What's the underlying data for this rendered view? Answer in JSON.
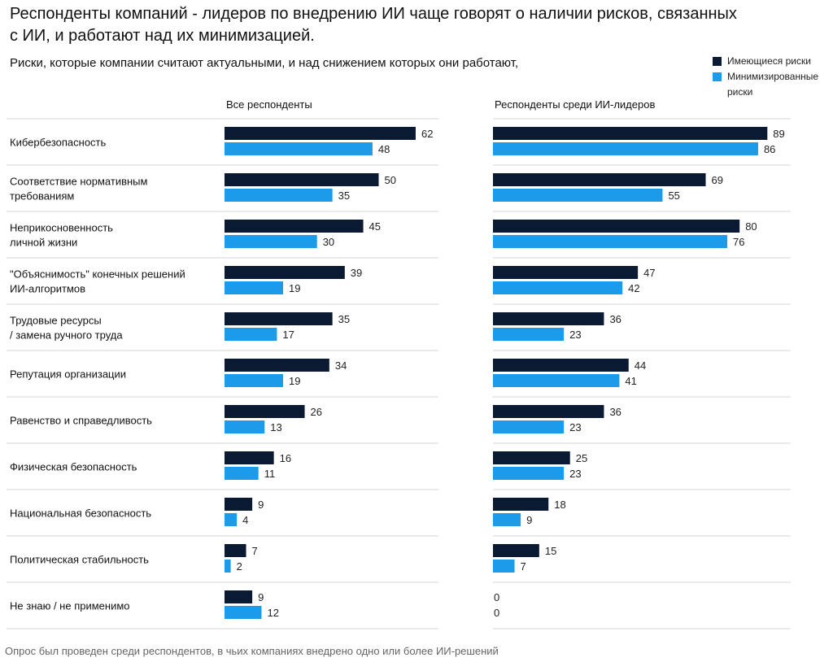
{
  "title": "Респонденты компаний - лидеров по внедрению ИИ чаще говорят о наличии рисков, связанных с ИИ, и работают над их минимизацией.",
  "subtitle": "Риски, которые компании считают актуальными, и над снижением которых они работают,",
  "footnote": "Опрос был проведен среди респондентов, в чьих компаниях внедрено одно или более ИИ-решений",
  "legend": [
    {
      "label": "Имеющиеся риски",
      "color": "#0b1a33"
    },
    {
      "label": "Минимизированные риски",
      "color": "#1c9bea"
    }
  ],
  "chart_data": {
    "type": "bar",
    "orientation": "horizontal",
    "title": "Респонденты компаний - лидеров по внедрению ИИ чаще говорят о наличии рисков, связанных с ИИ, и работают над их минимизацией.",
    "categories": [
      "Кибербезопасность",
      "Соответствие нормативным требованиям",
      "Неприкосновенность личной жизни",
      "\"Объяснимость\" конечных решений ИИ-алгоритмов",
      "Трудовые ресурсы / замена ручного труда",
      "Репутация организации",
      "Равенство и справедливость",
      "Физическая безопасность",
      "Национальная безопасность",
      "Политическая стабильность",
      "Не знаю / не применимо"
    ],
    "category_lines": [
      [
        "Кибербезопасность"
      ],
      [
        "Соответствие нормативным",
        "требованиям"
      ],
      [
        "Неприкосновенность",
        "личной жизни"
      ],
      [
        "\"Объяснимость\" конечных решений",
        "ИИ-алгоритмов"
      ],
      [
        "Трудовые ресурсы",
        "/ замена ручного труда"
      ],
      [
        "Репутация организации"
      ],
      [
        "Равенство и справедливость"
      ],
      [
        "Физическая безопасность"
      ],
      [
        "Национальная безопасность"
      ],
      [
        "Политическая стабильность"
      ],
      [
        "Не знаю / не применимо"
      ]
    ],
    "panels": [
      {
        "name": "Все респонденты",
        "series": [
          {
            "name": "Имеющиеся риски",
            "values": [
              62,
              50,
              45,
              39,
              35,
              34,
              26,
              16,
              9,
              7,
              9
            ]
          },
          {
            "name": "Минимизированные риски",
            "values": [
              48,
              35,
              30,
              19,
              17,
              19,
              13,
              11,
              4,
              2,
              12
            ]
          }
        ]
      },
      {
        "name": "Респонденты среди ИИ-лидеров",
        "series": [
          {
            "name": "Имеющиеся риски",
            "values": [
              89,
              69,
              80,
              47,
              36,
              44,
              36,
              25,
              18,
              15,
              0
            ]
          },
          {
            "name": "Минимизированные риски",
            "values": [
              86,
              55,
              76,
              42,
              23,
              41,
              23,
              23,
              9,
              7,
              0
            ]
          }
        ]
      }
    ],
    "colors": {
      "existing": "#0b1a33",
      "minimized": "#1c9bea",
      "separator": "#d4d4d4"
    },
    "xlim": [
      0,
      100
    ],
    "grid": false,
    "legend_position": "top-right"
  }
}
